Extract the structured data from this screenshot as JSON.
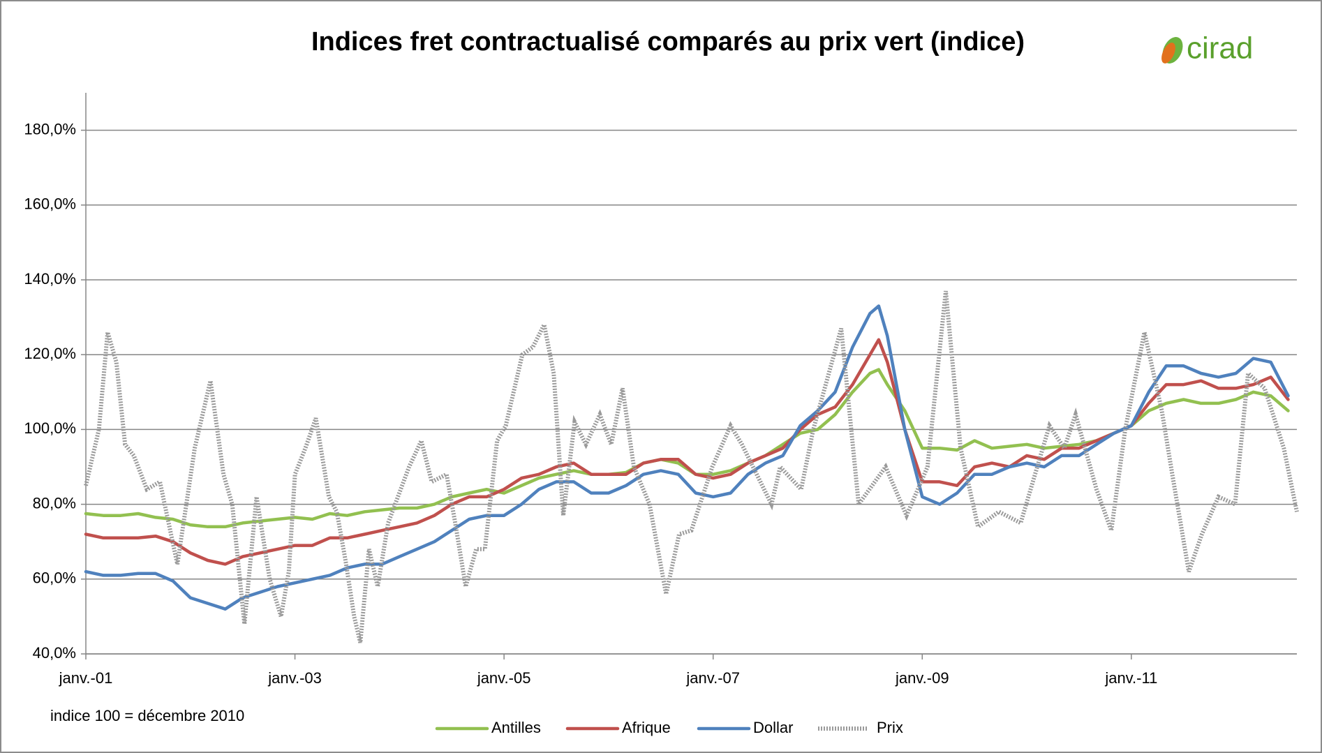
{
  "chart_data": {
    "type": "line",
    "title": "Indices fret contractualisé comparés au prix vert (indice)",
    "logo": "cirad",
    "note": "indice 100 = décembre 2010",
    "xlim": [
      0,
      139
    ],
    "xticks": [
      {
        "value": 0,
        "label": "janv.-01"
      },
      {
        "value": 24,
        "label": "janv.-03"
      },
      {
        "value": 48,
        "label": "janv.-05"
      },
      {
        "value": 72,
        "label": "janv.-07"
      },
      {
        "value": 96,
        "label": "janv.-09"
      },
      {
        "value": 120,
        "label": "janv.-11"
      }
    ],
    "ylim": [
      40,
      190
    ],
    "yticks": [
      {
        "value": 40,
        "label": "40,0%"
      },
      {
        "value": 60,
        "label": "60,0%"
      },
      {
        "value": 80,
        "label": "80,0%"
      },
      {
        "value": 100,
        "label": "100,0%"
      },
      {
        "value": 120,
        "label": "120,0%"
      },
      {
        "value": 140,
        "label": "140,0%"
      },
      {
        "value": 160,
        "label": "160,0%"
      },
      {
        "value": 180,
        "label": "180,0%"
      }
    ],
    "grid": true,
    "legend": "bottom",
    "series": [
      {
        "name": "Antilles",
        "color": "#92c050",
        "style": "solid",
        "x": [
          0,
          2,
          4,
          6,
          8,
          10,
          12,
          14,
          16,
          18,
          20,
          22,
          24,
          26,
          28,
          30,
          32,
          34,
          36,
          38,
          40,
          42,
          44,
          46,
          48,
          50,
          52,
          54,
          56,
          58,
          60,
          62,
          64,
          66,
          68,
          70,
          72,
          74,
          76,
          78,
          80,
          82,
          84,
          86,
          88,
          90,
          91,
          92,
          94,
          96,
          98,
          100,
          102,
          104,
          106,
          108,
          110,
          112,
          114,
          116,
          118,
          120,
          122,
          124,
          126,
          128,
          130,
          132,
          134,
          136,
          138
        ],
        "values": [
          77.5,
          77,
          77,
          77.5,
          76.5,
          76,
          74.5,
          74,
          74,
          75,
          75.5,
          76,
          76.5,
          76,
          77.5,
          77,
          78,
          78.5,
          79,
          79,
          80,
          82,
          83,
          84,
          83,
          85,
          87,
          88,
          89,
          88,
          88,
          88.5,
          91,
          92,
          91,
          88,
          88,
          89,
          91,
          93,
          96,
          99,
          100,
          104,
          110,
          115,
          116,
          112,
          105,
          95,
          95,
          94.5,
          97,
          95,
          95.5,
          96,
          95,
          95.5,
          96,
          97,
          99,
          101,
          105,
          107,
          108,
          107,
          107,
          108,
          110,
          109,
          105
        ]
      },
      {
        "name": "Afrique",
        "color": "#c0504d",
        "style": "solid",
        "x": [
          0,
          2,
          4,
          6,
          8,
          10,
          12,
          14,
          16,
          18,
          20,
          22,
          24,
          26,
          28,
          30,
          32,
          34,
          36,
          38,
          40,
          42,
          44,
          46,
          48,
          50,
          52,
          54,
          56,
          58,
          60,
          62,
          64,
          66,
          68,
          70,
          72,
          74,
          76,
          78,
          80,
          82,
          84,
          86,
          88,
          90,
          91,
          92,
          94,
          96,
          98,
          100,
          102,
          104,
          106,
          108,
          110,
          112,
          114,
          116,
          118,
          120,
          122,
          124,
          126,
          128,
          130,
          132,
          134,
          136,
          138
        ],
        "values": [
          72,
          71,
          71,
          71,
          71.5,
          70,
          67,
          65,
          64,
          66,
          67,
          68,
          69,
          69,
          71,
          71,
          72,
          73,
          74,
          75,
          77,
          80,
          82,
          82,
          84,
          87,
          88,
          90,
          91,
          88,
          88,
          88,
          91,
          92,
          92,
          88,
          87,
          88,
          91,
          93,
          95,
          100,
          104,
          106,
          112,
          120,
          124,
          118,
          100,
          86,
          86,
          85,
          90,
          91,
          90,
          93,
          92,
          95,
          95,
          97,
          99,
          101,
          107,
          112,
          112,
          113,
          111,
          111,
          112,
          114,
          108
        ]
      },
      {
        "name": "Dollar",
        "color": "#4f81bd",
        "style": "solid",
        "x": [
          0,
          2,
          4,
          6,
          8,
          10,
          12,
          14,
          16,
          18,
          20,
          22,
          24,
          26,
          28,
          30,
          32,
          34,
          36,
          38,
          40,
          42,
          44,
          46,
          48,
          50,
          52,
          54,
          56,
          58,
          60,
          62,
          64,
          66,
          68,
          70,
          72,
          74,
          76,
          78,
          80,
          82,
          84,
          86,
          88,
          90,
          91,
          92,
          94,
          96,
          98,
          100,
          102,
          104,
          106,
          108,
          110,
          112,
          114,
          116,
          118,
          120,
          122,
          124,
          126,
          128,
          130,
          132,
          134,
          136,
          138
        ],
        "values": [
          62,
          61,
          61,
          61.5,
          61.5,
          59.5,
          55,
          53.5,
          52,
          55,
          56.5,
          58,
          59,
          60,
          61,
          63,
          64,
          64,
          66,
          68,
          70,
          73,
          76,
          77,
          77,
          80,
          84,
          86,
          86,
          83,
          83,
          85,
          88,
          89,
          88,
          83,
          82,
          83,
          88,
          91,
          93,
          101,
          105,
          110,
          122,
          131,
          133,
          125,
          100,
          82,
          80,
          83,
          88,
          88,
          90,
          91,
          90,
          93,
          93,
          96,
          99,
          101,
          110,
          117,
          117,
          115,
          114,
          115,
          119,
          118,
          109
        ]
      },
      {
        "name": "Prix",
        "color": "#9a9a9a",
        "style": "dashed",
        "x": [
          0,
          1.5,
          2.5,
          3.5,
          4.5,
          5.5,
          7,
          8.5,
          10.5,
          12.5,
          14.3,
          15.8,
          16.8,
          18.2,
          19.6,
          21.1,
          22.4,
          23.3,
          24,
          25.2,
          26.4,
          27.9,
          28.8,
          29.8,
          30.8,
          31.5,
          32.5,
          33.5,
          34.7,
          37.1,
          38.5,
          39.7,
          41.4,
          42.4,
          43.6,
          44.8,
          45.8,
          47.2,
          48.2,
          50.1,
          51.3,
          52.6,
          53.7,
          54.8,
          56.1,
          57.4,
          59,
          60.3,
          61.6,
          62.9,
          64.7,
          66.6,
          68.1,
          69.5,
          71.9,
          74,
          75.3,
          78.7,
          79.7,
          82.1,
          83.5,
          86.7,
          88.7,
          91.8,
          94.2,
          96.6,
          98.7,
          100.4,
          102.4,
          104.8,
          107.3,
          110.6,
          112.3,
          113.6,
          116,
          117.7,
          119.3,
          121.5,
          123.5,
          124.7,
          126.6,
          128.1,
          130,
          131.9,
          133.4,
          135.3,
          137.5,
          139
        ],
        "values": [
          85,
          100,
          126,
          118,
          96,
          93,
          84,
          86,
          64,
          95,
          113,
          88,
          80,
          48,
          82,
          60,
          50,
          62,
          88,
          95,
          103,
          82,
          78,
          65,
          50,
          43,
          68,
          58,
          75,
          90,
          97,
          86,
          88,
          75,
          58,
          68,
          68,
          97,
          101,
          120,
          122,
          128,
          115,
          77,
          102,
          96,
          104,
          96,
          111,
          90,
          80,
          56,
          72,
          73,
          90,
          101,
          96,
          80,
          90,
          84,
          100,
          127,
          80,
          90,
          77,
          90,
          137,
          95,
          74,
          78,
          75,
          101,
          95,
          104,
          84,
          73,
          100,
          126,
          105,
          88,
          62,
          72,
          82,
          80,
          115,
          111,
          95,
          78
        ]
      }
    ]
  }
}
